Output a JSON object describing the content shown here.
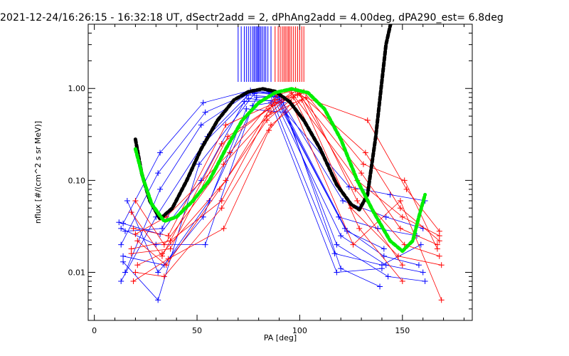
{
  "chart_data": {
    "type": "line",
    "title": "2021-12-24/16:26:15 - 16:32:18 UT, dSectr2add = 2, dPhAng2add = 4.00deg, dPA290_est=    6.8deg",
    "xlabel": "PA [deg]",
    "ylabel": "nflux [#/(cm^2 s sr MeV)]",
    "xlim": [
      -3,
      184
    ],
    "ylim": [
      0.003,
      5
    ],
    "yscale": "log",
    "x_ticks": [
      0,
      50,
      100,
      150
    ],
    "x_tick_labels": [
      "0",
      "50",
      "100",
      "150"
    ],
    "y_ticks": [
      0.01,
      0.1,
      1.0
    ],
    "y_tick_labels": [
      "0.01",
      "0.10",
      "1.00"
    ],
    "grid": false,
    "colors": {
      "blue": "#0000ff",
      "red": "#ff0000",
      "black": "#000000",
      "green": "#00ee00"
    },
    "series": [
      {
        "color": "blue",
        "points": [
          [
            14,
            0.034
          ],
          [
            32,
            0.2
          ],
          [
            53,
            0.7
          ],
          [
            76,
            0.95
          ],
          [
            86,
            0.9
          ],
          [
            120,
            0.025
          ],
          [
            142,
            0.012
          ],
          [
            160,
            0.01
          ]
        ]
      },
      {
        "color": "blue",
        "points": [
          [
            13,
            0.02
          ],
          [
            31,
            0.12
          ],
          [
            54,
            0.55
          ],
          [
            77,
            0.92
          ],
          [
            88,
            0.85
          ],
          [
            122,
            0.03
          ],
          [
            141,
            0.015
          ],
          [
            158,
            0.012
          ]
        ]
      },
      {
        "color": "blue",
        "points": [
          [
            15,
            0.01
          ],
          [
            32,
            0.08
          ],
          [
            52,
            0.4
          ],
          [
            74,
            0.85
          ],
          [
            90,
            0.8
          ],
          [
            118,
            0.02
          ],
          [
            143,
            0.009
          ],
          [
            161,
            0.008
          ]
        ]
      },
      {
        "color": "blue",
        "points": [
          [
            13,
            0.008
          ],
          [
            30,
            0.04
          ],
          [
            53,
            0.25
          ],
          [
            75,
            0.78
          ],
          [
            92,
            0.7
          ],
          [
            120,
            0.011
          ],
          [
            139,
            0.007
          ]
        ]
      },
      {
        "color": "blue",
        "points": [
          [
            14,
            0.013
          ],
          [
            31,
            0.005
          ],
          [
            51,
            0.15
          ],
          [
            78,
            0.88
          ],
          [
            85,
            0.92
          ],
          [
            117,
            0.016
          ],
          [
            140,
            0.012
          ],
          [
            159,
            0.02
          ]
        ]
      },
      {
        "color": "blue",
        "points": [
          [
            15,
            0.028
          ],
          [
            33,
            0.03
          ],
          [
            55,
            0.3
          ],
          [
            76,
            0.9
          ],
          [
            87,
            0.88
          ],
          [
            119,
            0.04
          ],
          [
            138,
            0.03
          ],
          [
            157,
            0.025
          ]
        ]
      },
      {
        "color": "blue",
        "points": [
          [
            12,
            0.035
          ],
          [
            32,
            0.026
          ],
          [
            52,
            0.1
          ],
          [
            73,
            0.72
          ],
          [
            91,
            0.75
          ],
          [
            121,
            0.06
          ],
          [
            142,
            0.04
          ],
          [
            160,
            0.03
          ]
        ]
      },
      {
        "color": "blue",
        "points": [
          [
            14,
            0.015
          ],
          [
            34,
            0.012
          ],
          [
            56,
            0.06
          ],
          [
            79,
            0.8
          ],
          [
            89,
            0.82
          ],
          [
            123,
            0.028
          ],
          [
            141,
            0.018
          ]
        ]
      },
      {
        "color": "blue",
        "points": [
          [
            16,
            0.06
          ],
          [
            31,
            0.01
          ],
          [
            53,
            0.04
          ],
          [
            74,
            0.6
          ],
          [
            93,
            0.55
          ],
          [
            124,
            0.085
          ],
          [
            144,
            0.07
          ],
          [
            161,
            0.06
          ]
        ]
      },
      {
        "color": "blue",
        "points": [
          [
            13,
            0.03
          ],
          [
            30,
            0.02
          ],
          [
            54,
            0.02
          ],
          [
            77,
            0.65
          ],
          [
            86,
            0.7
          ],
          [
            118,
            0.01
          ],
          [
            140,
            0.011
          ]
        ]
      },
      {
        "color": "red",
        "points": [
          [
            18,
            0.045
          ],
          [
            33,
            0.015
          ],
          [
            62,
            0.25
          ],
          [
            85,
            0.6
          ],
          [
            96,
            0.9
          ],
          [
            128,
            0.1
          ],
          [
            150,
            0.04
          ],
          [
            168,
            0.025
          ]
        ]
      },
      {
        "color": "red",
        "points": [
          [
            20,
            0.06
          ],
          [
            34,
            0.02
          ],
          [
            63,
            0.15
          ],
          [
            86,
            0.55
          ],
          [
            98,
            0.95
          ],
          [
            130,
            0.12
          ],
          [
            149,
            0.03
          ],
          [
            167,
            0.02
          ]
        ]
      },
      {
        "color": "red",
        "points": [
          [
            19,
            0.03
          ],
          [
            36,
            0.025
          ],
          [
            64,
            0.4
          ],
          [
            88,
            0.7
          ],
          [
            100,
            0.88
          ],
          [
            127,
            0.08
          ],
          [
            151,
            0.02
          ],
          [
            168,
            0.015
          ]
        ]
      },
      {
        "color": "red",
        "points": [
          [
            21,
            0.022
          ],
          [
            35,
            0.012
          ],
          [
            61,
            0.08
          ],
          [
            84,
            0.45
          ],
          [
            97,
            0.8
          ],
          [
            125,
            0.05
          ],
          [
            148,
            0.015
          ],
          [
            169,
            0.012
          ]
        ]
      },
      {
        "color": "red",
        "points": [
          [
            18,
            0.016
          ],
          [
            37,
            0.018
          ],
          [
            65,
            0.3
          ],
          [
            87,
            0.65
          ],
          [
            99,
            0.85
          ],
          [
            133,
            0.45
          ],
          [
            152,
            0.08
          ],
          [
            168,
            0.028
          ]
        ]
      },
      {
        "color": "red",
        "points": [
          [
            20,
            0.01
          ],
          [
            34,
            0.009
          ],
          [
            62,
            0.05
          ],
          [
            86,
            0.4
          ],
          [
            101,
            0.75
          ],
          [
            129,
            0.03
          ],
          [
            150,
            0.008
          ]
        ]
      },
      {
        "color": "red",
        "points": [
          [
            19,
            0.008
          ],
          [
            36,
            0.014
          ],
          [
            63,
            0.03
          ],
          [
            85,
            0.35
          ],
          [
            96,
            0.7
          ],
          [
            126,
            0.02
          ],
          [
            149,
            0.06
          ],
          [
            169,
            0.005
          ]
        ]
      },
      {
        "color": "red",
        "points": [
          [
            21,
            0.012
          ],
          [
            33,
            0.016
          ],
          [
            64,
            0.1
          ],
          [
            88,
            0.75
          ],
          [
            102,
            0.92
          ],
          [
            131,
            0.15
          ],
          [
            151,
            0.1
          ],
          [
            167,
            0.018
          ]
        ]
      },
      {
        "color": "red",
        "points": [
          [
            20,
            0.026
          ],
          [
            35,
            0.04
          ],
          [
            66,
            0.2
          ],
          [
            89,
            0.85
          ],
          [
            98,
            0.97
          ],
          [
            132,
            0.2
          ],
          [
            149,
            0.05
          ],
          [
            168,
            0.022
          ]
        ]
      },
      {
        "color": "red",
        "points": [
          [
            18,
            0.018
          ],
          [
            37,
            0.022
          ],
          [
            62,
            0.06
          ],
          [
            84,
            0.5
          ],
          [
            103,
            0.8
          ],
          [
            128,
            0.06
          ],
          [
            150,
            0.012
          ]
        ]
      }
    ],
    "fit_black": {
      "color": "black",
      "points": [
        [
          20,
          0.28
        ],
        [
          23,
          0.12
        ],
        [
          27,
          0.06
        ],
        [
          32,
          0.038
        ],
        [
          38,
          0.05
        ],
        [
          45,
          0.1
        ],
        [
          52,
          0.22
        ],
        [
          60,
          0.45
        ],
        [
          68,
          0.75
        ],
        [
          75,
          0.92
        ],
        [
          82,
          0.99
        ],
        [
          88,
          0.93
        ],
        [
          95,
          0.72
        ],
        [
          102,
          0.45
        ],
        [
          110,
          0.22
        ],
        [
          118,
          0.09
        ],
        [
          125,
          0.055
        ],
        [
          129,
          0.048
        ],
        [
          133,
          0.07
        ],
        [
          137,
          0.3
        ],
        [
          140,
          1.2
        ],
        [
          142,
          3.0
        ],
        [
          145,
          6.0
        ]
      ]
    },
    "fit_green": {
      "color": "green",
      "points": [
        [
          20,
          0.22
        ],
        [
          24,
          0.1
        ],
        [
          28,
          0.055
        ],
        [
          34,
          0.036
        ],
        [
          40,
          0.04
        ],
        [
          48,
          0.06
        ],
        [
          56,
          0.1
        ],
        [
          64,
          0.22
        ],
        [
          72,
          0.45
        ],
        [
          80,
          0.7
        ],
        [
          88,
          0.9
        ],
        [
          96,
          0.99
        ],
        [
          104,
          0.9
        ],
        [
          112,
          0.6
        ],
        [
          120,
          0.28
        ],
        [
          128,
          0.1
        ],
        [
          136,
          0.045
        ],
        [
          144,
          0.022
        ],
        [
          150,
          0.017
        ],
        [
          155,
          0.022
        ],
        [
          158,
          0.04
        ],
        [
          161,
          0.07
        ]
      ]
    },
    "ticks_blue_x": [
      70,
      71.5,
      73,
      74,
      75,
      76,
      77,
      77.7,
      78.3,
      79,
      79.5,
      80,
      80.6,
      81.2,
      82,
      82.8,
      83.5,
      84.5,
      86
    ],
    "ticks_red_x": [
      88,
      89.5,
      90.5,
      91.5,
      92.3,
      93,
      93.8,
      94.5,
      95.2,
      96,
      97,
      98,
      99,
      100,
      101,
      102
    ]
  }
}
